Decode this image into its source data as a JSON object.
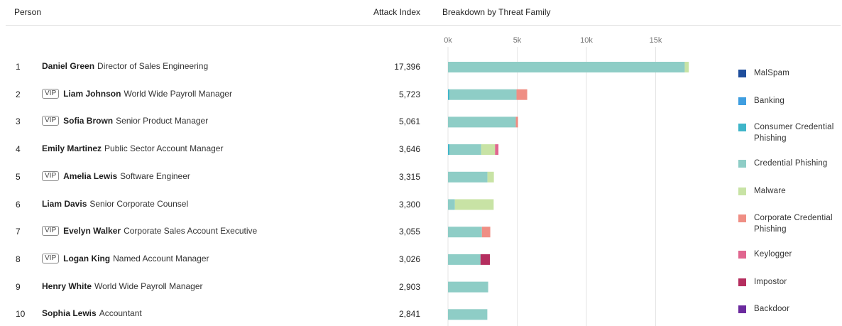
{
  "header": {
    "person": "Person",
    "attack_index": "Attack Index",
    "breakdown": "Breakdown by Threat Family"
  },
  "vip_label": "VIP",
  "rows": [
    {
      "rank": "1",
      "vip": false,
      "name": "Daniel Green",
      "title": "Director of Sales Engineering",
      "attack_index": "17,396"
    },
    {
      "rank": "2",
      "vip": true,
      "name": "Liam Johnson",
      "title": "World Wide Payroll Manager",
      "attack_index": "5,723"
    },
    {
      "rank": "3",
      "vip": true,
      "name": "Sofia Brown",
      "title": "Senior Product Manager",
      "attack_index": "5,061"
    },
    {
      "rank": "4",
      "vip": false,
      "name": "Emily Martinez",
      "title": "Public Sector Account Manager",
      "attack_index": "3,646"
    },
    {
      "rank": "5",
      "vip": true,
      "name": "Amelia Lewis",
      "title": "Software Engineer",
      "attack_index": "3,315"
    },
    {
      "rank": "6",
      "vip": false,
      "name": "Liam Davis",
      "title": "Senior Corporate Counsel",
      "attack_index": "3,300"
    },
    {
      "rank": "7",
      "vip": true,
      "name": "Evelyn Walker",
      "title": "Corporate Sales Account Executive",
      "attack_index": "3,055"
    },
    {
      "rank": "8",
      "vip": true,
      "name": "Logan King",
      "title": "Named Account Manager",
      "attack_index": "3,026"
    },
    {
      "rank": "9",
      "vip": false,
      "name": "Henry White",
      "title": "World Wide Payroll Manager",
      "attack_index": "2,903"
    },
    {
      "rank": "10",
      "vip": false,
      "name": "Sophia Lewis",
      "title": "Accountant",
      "attack_index": "2,841"
    }
  ],
  "legend": [
    {
      "label": "MalSpam",
      "color": "#1f4e9c"
    },
    {
      "label": "Banking",
      "color": "#3f9ee0"
    },
    {
      "label": "Consumer Credential Phishing",
      "color": "#3fb5c9"
    },
    {
      "label": "Credential Phishing",
      "color": "#8ecdc6"
    },
    {
      "label": "Malware",
      "color": "#c8e3a5"
    },
    {
      "label": "Corporate Credential Phishing",
      "color": "#ef8e84"
    },
    {
      "label": "Keylogger",
      "color": "#e0668f"
    },
    {
      "label": "Impostor",
      "color": "#b52e5f"
    },
    {
      "label": "Backdoor",
      "color": "#6b2a9e"
    }
  ],
  "chart_data": {
    "type": "bar",
    "orientation": "horizontal",
    "stacked": true,
    "title": "Breakdown by Threat Family",
    "x_ticks": [
      "0k",
      "5k",
      "10k",
      "15k"
    ],
    "xlim": [
      0,
      17400
    ],
    "grid": true,
    "legend_position": "right",
    "categories": [
      "Daniel Green",
      "Liam Johnson",
      "Sofia Brown",
      "Emily Martinez",
      "Amelia Lewis",
      "Liam Davis",
      "Evelyn Walker",
      "Logan King",
      "Henry White",
      "Sophia Lewis"
    ],
    "series": [
      {
        "name": "MalSpam",
        "color": "#1f4e9c",
        "values": [
          0,
          0,
          0,
          0,
          0,
          0,
          0,
          0,
          0,
          0
        ]
      },
      {
        "name": "Banking",
        "color": "#3f9ee0",
        "values": [
          0,
          0,
          0,
          0,
          0,
          0,
          0,
          0,
          0,
          0
        ]
      },
      {
        "name": "Consumer Credential Phishing",
        "color": "#3fb5c9",
        "values": [
          0,
          100,
          0,
          100,
          0,
          0,
          0,
          0,
          0,
          0
        ]
      },
      {
        "name": "Credential Phishing",
        "color": "#8ecdc6",
        "values": [
          17100,
          4850,
          4900,
          2300,
          2850,
          500,
          2450,
          2350,
          2903,
          2841
        ]
      },
      {
        "name": "Malware",
        "color": "#c8e3a5",
        "values": [
          296,
          0,
          0,
          1000,
          465,
          2800,
          0,
          0,
          0,
          0
        ]
      },
      {
        "name": "Corporate Credential Phishing",
        "color": "#ef8e84",
        "values": [
          0,
          773,
          161,
          0,
          0,
          0,
          605,
          0,
          0,
          0
        ]
      },
      {
        "name": "Keylogger",
        "color": "#e0668f",
        "values": [
          0,
          0,
          0,
          246,
          0,
          0,
          0,
          0,
          0,
          0
        ]
      },
      {
        "name": "Impostor",
        "color": "#b52e5f",
        "values": [
          0,
          0,
          0,
          0,
          0,
          0,
          0,
          676,
          0,
          0
        ]
      },
      {
        "name": "Backdoor",
        "color": "#6b2a9e",
        "values": [
          0,
          0,
          0,
          0,
          0,
          0,
          0,
          0,
          0,
          0
        ]
      }
    ]
  }
}
